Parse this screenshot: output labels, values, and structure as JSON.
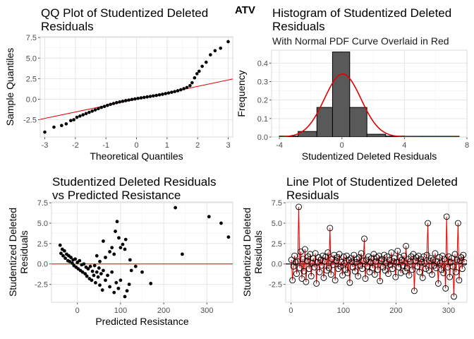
{
  "figure": {
    "supertitle": "ATV",
    "colors": {
      "points": "#000000",
      "line": "#e00000",
      "bar_fill": "#595959",
      "bar_edge": "#000000"
    }
  },
  "chart_data": [
    {
      "id": "qq",
      "type": "scatter",
      "title": [
        "QQ Plot of Studentized Deleted",
        "Residuals"
      ],
      "xlabel": "Theoretical Quantiles",
      "ylabel": "Sample Quantiles",
      "xlim": [
        -3.15,
        3.15
      ],
      "ylim": [
        -4.6,
        7.6
      ],
      "xticks": [
        -3,
        -2,
        -1,
        0,
        1,
        2,
        3
      ],
      "yticks": [
        -2.5,
        0.0,
        2.5,
        5.0,
        7.5
      ],
      "ytick_labels": [
        "-2.5",
        "0.0",
        "2.5",
        "5.0",
        "7.5"
      ],
      "points": [
        [
          -3.0,
          -4.0
        ],
        [
          -2.7,
          -3.4
        ],
        [
          -2.45,
          -3.2
        ],
        [
          -2.3,
          -3.0
        ],
        [
          -2.15,
          -2.6
        ],
        [
          -2.05,
          -2.5
        ],
        [
          -1.95,
          -2.2
        ],
        [
          -1.85,
          -2.05
        ],
        [
          -1.75,
          -1.9
        ],
        [
          -1.65,
          -1.75
        ],
        [
          -1.55,
          -1.6
        ],
        [
          -1.45,
          -1.45
        ],
        [
          -1.35,
          -1.3
        ],
        [
          -1.25,
          -1.15
        ],
        [
          -1.15,
          -1.0
        ],
        [
          -1.05,
          -0.88
        ],
        [
          -0.95,
          -0.75
        ],
        [
          -0.85,
          -0.63
        ],
        [
          -0.75,
          -0.52
        ],
        [
          -0.65,
          -0.42
        ],
        [
          -0.55,
          -0.33
        ],
        [
          -0.45,
          -0.25
        ],
        [
          -0.35,
          -0.17
        ],
        [
          -0.25,
          -0.1
        ],
        [
          -0.15,
          -0.03
        ],
        [
          -0.05,
          0.03
        ],
        [
          0.05,
          0.1
        ],
        [
          0.15,
          0.16
        ],
        [
          0.25,
          0.22
        ],
        [
          0.35,
          0.28
        ],
        [
          0.45,
          0.34
        ],
        [
          0.55,
          0.4
        ],
        [
          0.65,
          0.46
        ],
        [
          0.75,
          0.53
        ],
        [
          0.85,
          0.6
        ],
        [
          0.95,
          0.68
        ],
        [
          1.05,
          0.76
        ],
        [
          1.15,
          0.84
        ],
        [
          1.25,
          0.93
        ],
        [
          1.35,
          1.03
        ],
        [
          1.45,
          1.15
        ],
        [
          1.55,
          1.28
        ],
        [
          1.65,
          1.42
        ],
        [
          1.75,
          1.65
        ],
        [
          1.82,
          2.0
        ],
        [
          1.9,
          2.6
        ],
        [
          1.98,
          3.1
        ],
        [
          2.05,
          3.4
        ],
        [
          2.15,
          4.0
        ],
        [
          2.28,
          4.5
        ],
        [
          2.42,
          5.4
        ],
        [
          2.57,
          5.9
        ],
        [
          2.75,
          6.2
        ],
        [
          3.0,
          7.0
        ]
      ],
      "reference_line": {
        "slope": 0.78,
        "intercept": 0.0
      }
    },
    {
      "id": "hist",
      "type": "bar",
      "title": [
        "Histogram of Studentized Deleted",
        "Residuals"
      ],
      "subtitle": "With Normal PDF Curve Overlaid in Red",
      "xlabel": "Studentized Deleted Residuals",
      "ylabel": "Frequency",
      "xlim": [
        -4.5,
        8.0
      ],
      "ylim": [
        0,
        0.47
      ],
      "xticks": [
        -4,
        0,
        4,
        8
      ],
      "yticks": [
        0.0,
        0.1,
        0.2,
        0.3,
        0.4
      ],
      "ytick_labels": [
        "0.0",
        "0.1",
        "0.2",
        "0.3",
        "0.4"
      ],
      "bins": [
        [
          -4.0,
          -2.8,
          0.005
        ],
        [
          -2.8,
          -1.6,
          0.03
        ],
        [
          -1.6,
          -0.6,
          0.16
        ],
        [
          -0.6,
          0.5,
          0.46
        ],
        [
          0.5,
          1.6,
          0.16
        ],
        [
          1.6,
          2.8,
          0.015
        ],
        [
          2.8,
          4.0,
          0.005
        ],
        [
          4.0,
          5.2,
          0.004
        ],
        [
          5.2,
          6.4,
          0.004
        ],
        [
          6.4,
          7.5,
          0.004
        ]
      ],
      "pdf": {
        "mean": 0.05,
        "sd": 1.17
      }
    },
    {
      "id": "vs_pred",
      "type": "scatter",
      "title": [
        "Studentized Deleted Residuals",
        "vs Predicted Resistance"
      ],
      "xlabel": "Predicted Resistance",
      "ylabel": [
        "Studentized Deleted",
        "Residuals"
      ],
      "xlim": [
        -60,
        360
      ],
      "ylim": [
        -4.7,
        7.6
      ],
      "xticks": [
        0,
        100,
        200,
        300
      ],
      "yticks": [
        -2.5,
        0.0,
        2.5,
        5.0,
        7.5
      ],
      "ytick_labels": [
        "-2.5",
        "0.0",
        "2.5",
        "5.0",
        "7.5"
      ],
      "points": [
        [
          -40,
          2.3
        ],
        [
          -38,
          1.3
        ],
        [
          -35,
          1.8
        ],
        [
          -33,
          1.0
        ],
        [
          -30,
          1.6
        ],
        [
          -28,
          0.7
        ],
        [
          -25,
          1.2
        ],
        [
          -22,
          0.4
        ],
        [
          -20,
          1.0
        ],
        [
          -18,
          0.3
        ],
        [
          -15,
          0.8
        ],
        [
          -12,
          0.1
        ],
        [
          -10,
          0.5
        ],
        [
          -8,
          -0.2
        ],
        [
          -5,
          0.6
        ],
        [
          -3,
          -0.4
        ],
        [
          0,
          0.2
        ],
        [
          2,
          -0.6
        ],
        [
          5,
          0.4
        ],
        [
          7,
          -0.8
        ],
        [
          10,
          -0.1
        ],
        [
          12,
          -1.0
        ],
        [
          15,
          0.0
        ],
        [
          18,
          -1.2
        ],
        [
          20,
          -0.4
        ],
        [
          22,
          -1.5
        ],
        [
          25,
          -0.6
        ],
        [
          28,
          -1.8
        ],
        [
          30,
          -0.3
        ],
        [
          33,
          -2.0
        ],
        [
          35,
          -0.9
        ],
        [
          38,
          -1.4
        ],
        [
          40,
          -0.2
        ],
        [
          42,
          -2.3
        ],
        [
          45,
          -1.0
        ],
        [
          48,
          -1.6
        ],
        [
          50,
          -0.5
        ],
        [
          52,
          -2.6
        ],
        [
          55,
          -1.2
        ],
        [
          58,
          -3.2
        ],
        [
          60,
          -0.8
        ],
        [
          65,
          -2.0
        ],
        [
          70,
          -1.4
        ],
        [
          75,
          -2.8
        ],
        [
          80,
          -1.0
        ],
        [
          85,
          -3.5
        ],
        [
          90,
          -2.3
        ],
        [
          95,
          -3.0
        ],
        [
          100,
          -2.0
        ],
        [
          110,
          -4.0
        ],
        [
          115,
          -3.3
        ],
        [
          120,
          -2.5
        ],
        [
          125,
          -0.8
        ],
        [
          75,
          1.5
        ],
        [
          80,
          2.0
        ],
        [
          85,
          1.2
        ],
        [
          88,
          4.0
        ],
        [
          92,
          5.2
        ],
        [
          96,
          3.2
        ],
        [
          100,
          2.0
        ],
        [
          105,
          2.4
        ],
        [
          110,
          1.8
        ],
        [
          112,
          3.0
        ],
        [
          122,
          0.5
        ],
        [
          135,
          -0.3
        ],
        [
          150,
          -1.0
        ],
        [
          170,
          -2.4
        ],
        [
          227,
          6.9
        ],
        [
          243,
          1.2
        ],
        [
          305,
          5.8
        ],
        [
          333,
          5.0
        ],
        [
          350,
          3.3
        ],
        [
          60,
          2.8
        ],
        [
          65,
          0.8
        ],
        [
          45,
          1.0
        ],
        [
          52,
          0.3
        ]
      ],
      "reference_line": {
        "y": 0
      }
    },
    {
      "id": "line",
      "type": "line",
      "title": [
        "Line Plot of Studentized Deleted",
        "Residuals"
      ],
      "xlabel": "",
      "ylabel": [
        "Studentized Deleted",
        "Residuals"
      ],
      "xlim": [
        -10,
        335
      ],
      "ylim": [
        -4.7,
        7.6
      ],
      "xticks": [
        0,
        100,
        200,
        300
      ],
      "yticks": [
        -2.5,
        0.0,
        2.5,
        5.0,
        7.5
      ],
      "ytick_labels": [
        "-2.5",
        "0.0",
        "2.5",
        "5.0",
        "7.5"
      ],
      "y": [
        0.5,
        -2.0,
        -0.3,
        1.0,
        0.2,
        -1.2,
        0.3,
        7.0,
        -0.5,
        1.5,
        -1.8,
        0.6,
        -0.9,
        1.8,
        -2.2,
        0.4,
        0.9,
        -0.6,
        1.2,
        -1.5,
        0.1,
        0.7,
        -0.4,
        1.3,
        -2.4,
        0.2,
        0.8,
        -1.0,
        0.5,
        -0.2,
        1.0,
        -1.7,
        0.3,
        0.9,
        -0.8,
        1.4,
        -0.5,
        4.4,
        -1.3,
        0.6,
        -0.1,
        1.1,
        -2.0,
        0.4,
        0.8,
        -0.6,
        1.2,
        -0.3,
        0.2,
        -1.4,
        0.9,
        0.1,
        -0.7,
        1.0,
        -1.1,
        0.5,
        -2.3,
        0.7,
        0.3,
        -0.4,
        1.1,
        -0.9,
        0.2,
        0.6,
        -1.5,
        0.8,
        -0.2,
        1.3,
        -0.6,
        0.4,
        3.1,
        -1.8,
        0.5,
        -0.3,
        0.9,
        -1.0,
        0.2,
        0.7,
        -0.5,
        1.2,
        -1.3,
        0.3,
        0.8,
        -0.7,
        1.0,
        -2.1,
        0.4,
        0.6,
        -0.4,
        1.1,
        -0.8,
        0.1,
        0.9,
        -1.2,
        0.5,
        -0.1,
        1.4,
        -0.6,
        0.3,
        0.7,
        -1.6,
        0.2,
        1.6,
        -0.4,
        0.8,
        -1.1,
        0.5,
        -0.2,
        1.0,
        -0.9,
        2.2,
        -0.5,
        0.6,
        -1.4,
        0.3,
        0.9,
        -0.7,
        1.2,
        -3.3,
        0.4,
        0.8,
        -0.3,
        1.0,
        -1.0,
        0.6,
        0.2,
        -1.7,
        0.9,
        0.1,
        -0.6,
        1.1,
        5.0,
        -0.8,
        0.4,
        0.7,
        -1.3,
        0.5,
        -0.2,
        1.3,
        -0.5,
        0.3,
        -2.4,
        0.8,
        0.1,
        -0.7,
        1.0,
        -1.1,
        0.6,
        -3.0,
        5.8,
        -0.4,
        0.9,
        -1.6,
        0.2,
        0.7,
        -0.3,
        -4.0,
        1.2,
        -1.0,
        0.5,
        5.0,
        -2.0,
        0.4,
        0.8,
        -0.6,
        1.1,
        0.2
      ],
      "reference_line": {
        "y": 0
      }
    }
  ]
}
